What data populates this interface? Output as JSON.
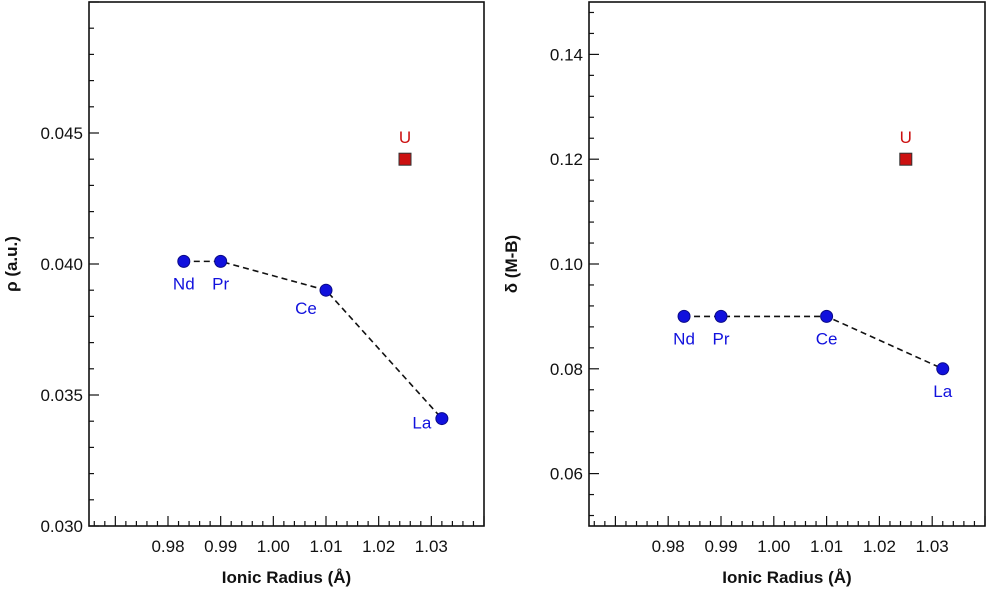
{
  "chart_data": [
    {
      "type": "scatter",
      "xlabel": "Ionic Radius (Å)",
      "ylabel": "ρ (a.u.)",
      "xlim": [
        0.965,
        1.04
      ],
      "ylim": [
        0.03,
        0.05
      ],
      "xticks": [
        0.98,
        0.99,
        1.0,
        1.01,
        1.02,
        1.03
      ],
      "xtick_labels": [
        "0.98",
        "0.99",
        "1.00",
        "1.01",
        "1.02",
        "1.03"
      ],
      "yticks": [
        0.03,
        0.035,
        0.04,
        0.045
      ],
      "ytick_labels": [
        "0.030",
        "0.035",
        "0.040",
        "0.045"
      ],
      "grid": false,
      "series": [
        {
          "marker": "circle",
          "color": "#1111dd",
          "line": "dashed",
          "points": [
            {
              "label": "Nd",
              "x": 0.983,
              "y": 0.0401
            },
            {
              "label": "Pr",
              "x": 0.99,
              "y": 0.0401
            },
            {
              "label": "Ce",
              "x": 1.01,
              "y": 0.039
            },
            {
              "label": "La",
              "x": 1.032,
              "y": 0.0341
            }
          ]
        },
        {
          "marker": "square",
          "color": "#cc1111",
          "line": "none",
          "points": [
            {
              "label": "U",
              "x": 1.025,
              "y": 0.044
            }
          ]
        }
      ]
    },
    {
      "type": "scatter",
      "xlabel": "Ionic Radius (Å)",
      "ylabel": "δ (M-B)",
      "xlim": [
        0.965,
        1.04
      ],
      "ylim": [
        0.05,
        0.15
      ],
      "xticks": [
        0.98,
        0.99,
        1.0,
        1.01,
        1.02,
        1.03
      ],
      "xtick_labels": [
        "0.98",
        "0.99",
        "1.00",
        "1.01",
        "1.02",
        "1.03"
      ],
      "yticks": [
        0.06,
        0.08,
        0.1,
        0.12,
        0.14
      ],
      "ytick_labels": [
        "0.06",
        "0.08",
        "0.10",
        "0.12",
        "0.14"
      ],
      "grid": false,
      "series": [
        {
          "marker": "circle",
          "color": "#1111dd",
          "line": "dashed",
          "points": [
            {
              "label": "Nd",
              "x": 0.983,
              "y": 0.09
            },
            {
              "label": "Pr",
              "x": 0.99,
              "y": 0.09
            },
            {
              "label": "Ce",
              "x": 1.01,
              "y": 0.09
            },
            {
              "label": "La",
              "x": 1.032,
              "y": 0.08
            }
          ]
        },
        {
          "marker": "square",
          "color": "#cc1111",
          "line": "none",
          "points": [
            {
              "label": "U",
              "x": 1.025,
              "y": 0.12
            }
          ]
        }
      ]
    }
  ]
}
